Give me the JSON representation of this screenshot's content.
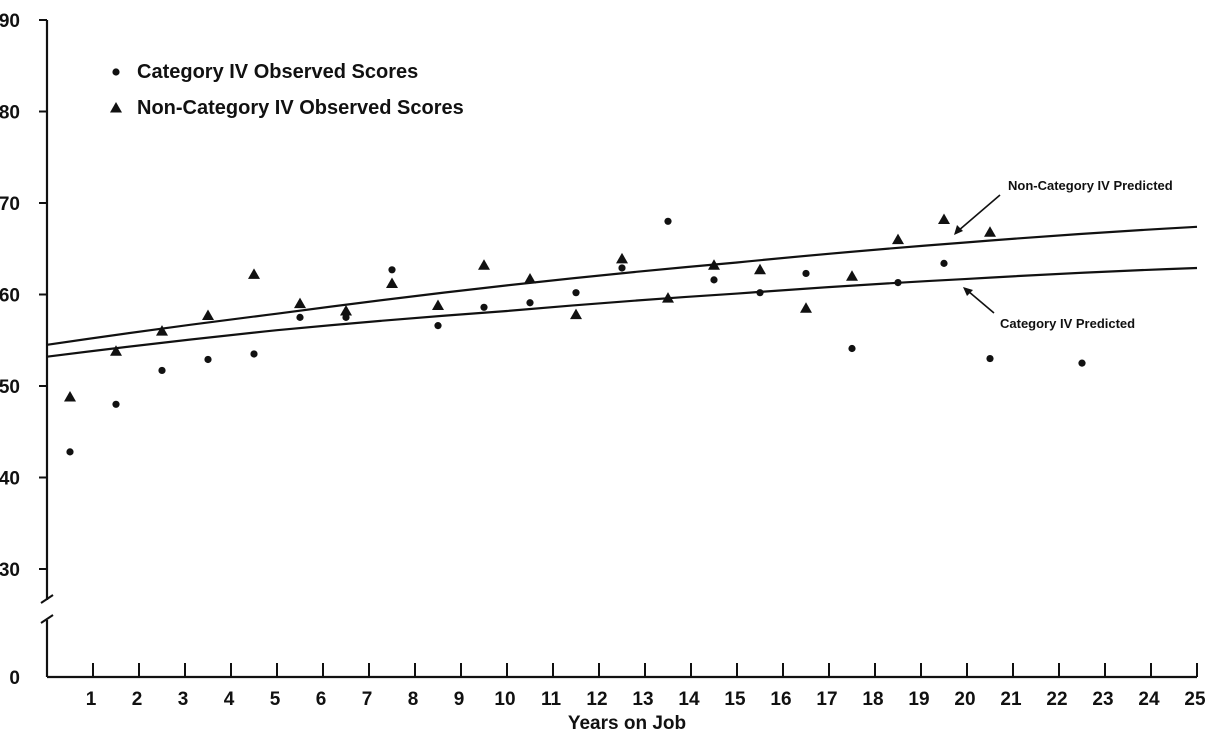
{
  "chart_data": {
    "type": "scatter",
    "title": "",
    "xlabel": "Years on Job",
    "ylabel": "",
    "x_ticks": [
      1,
      2,
      3,
      4,
      5,
      6,
      7,
      8,
      9,
      10,
      11,
      12,
      13,
      14,
      15,
      16,
      17,
      18,
      19,
      20,
      21,
      22,
      23,
      24,
      25
    ],
    "y_ticks": [
      0,
      30,
      40,
      50,
      60,
      70,
      80,
      90
    ],
    "xlim": [
      0,
      25
    ],
    "ylim": [
      25,
      90
    ],
    "axis_break": true,
    "grid": false,
    "legend_position": "top-left",
    "series": [
      {
        "name": "Category IV Observed Scores",
        "marker": "circle",
        "points": [
          {
            "x": 0.5,
            "y": 42.8
          },
          {
            "x": 1.5,
            "y": 48.0
          },
          {
            "x": 2.5,
            "y": 51.7
          },
          {
            "x": 3.5,
            "y": 52.9
          },
          {
            "x": 4.5,
            "y": 53.5
          },
          {
            "x": 5.5,
            "y": 57.5
          },
          {
            "x": 6.5,
            "y": 57.5
          },
          {
            "x": 7.5,
            "y": 62.7
          },
          {
            "x": 8.5,
            "y": 56.6
          },
          {
            "x": 9.5,
            "y": 58.6
          },
          {
            "x": 10.5,
            "y": 59.1
          },
          {
            "x": 11.5,
            "y": 60.2
          },
          {
            "x": 12.5,
            "y": 62.9
          },
          {
            "x": 13.5,
            "y": 68.0
          },
          {
            "x": 14.5,
            "y": 61.6
          },
          {
            "x": 15.5,
            "y": 60.2
          },
          {
            "x": 16.5,
            "y": 62.3
          },
          {
            "x": 17.5,
            "y": 54.1
          },
          {
            "x": 18.5,
            "y": 61.3
          },
          {
            "x": 19.5,
            "y": 63.4
          },
          {
            "x": 20.5,
            "y": 53.0
          },
          {
            "x": 22.5,
            "y": 52.5
          }
        ]
      },
      {
        "name": "Non-Category IV Observed Scores",
        "marker": "triangle",
        "points": [
          {
            "x": 0.5,
            "y": 48.8
          },
          {
            "x": 1.5,
            "y": 53.8
          },
          {
            "x": 2.5,
            "y": 56.0
          },
          {
            "x": 3.5,
            "y": 57.7
          },
          {
            "x": 4.5,
            "y": 62.2
          },
          {
            "x": 5.5,
            "y": 59.0
          },
          {
            "x": 6.5,
            "y": 58.2
          },
          {
            "x": 7.5,
            "y": 61.2
          },
          {
            "x": 8.5,
            "y": 58.8
          },
          {
            "x": 9.5,
            "y": 63.2
          },
          {
            "x": 10.5,
            "y": 61.7
          },
          {
            "x": 11.5,
            "y": 57.8
          },
          {
            "x": 12.5,
            "y": 63.9
          },
          {
            "x": 13.5,
            "y": 59.6
          },
          {
            "x": 14.5,
            "y": 63.2
          },
          {
            "x": 15.5,
            "y": 62.7
          },
          {
            "x": 16.5,
            "y": 58.5
          },
          {
            "x": 17.5,
            "y": 62.0
          },
          {
            "x": 18.5,
            "y": 66.0
          },
          {
            "x": 19.5,
            "y": 68.2
          },
          {
            "x": 20.5,
            "y": 66.8
          }
        ]
      }
    ],
    "predicted_lines": [
      {
        "label": "Non-Category IV Predicted",
        "points": [
          {
            "x": 0,
            "y": 54.5
          },
          {
            "x": 5,
            "y": 57.9
          },
          {
            "x": 10,
            "y": 61.0
          },
          {
            "x": 15,
            "y": 63.5
          },
          {
            "x": 20,
            "y": 65.7
          },
          {
            "x": 25,
            "y": 67.4
          }
        ]
      },
      {
        "label": "Category IV Predicted",
        "points": [
          {
            "x": 0,
            "y": 53.2
          },
          {
            "x": 5,
            "y": 56.1
          },
          {
            "x": 10,
            "y": 58.2
          },
          {
            "x": 15,
            "y": 60.1
          },
          {
            "x": 20,
            "y": 61.7
          },
          {
            "x": 25,
            "y": 62.9
          }
        ]
      }
    ],
    "annotations": [
      {
        "text": "Non-Category IV Predicted",
        "target": "Non-Category IV Predicted"
      },
      {
        "text": "Category IV Predicted",
        "target": "Category IV Predicted"
      }
    ]
  }
}
